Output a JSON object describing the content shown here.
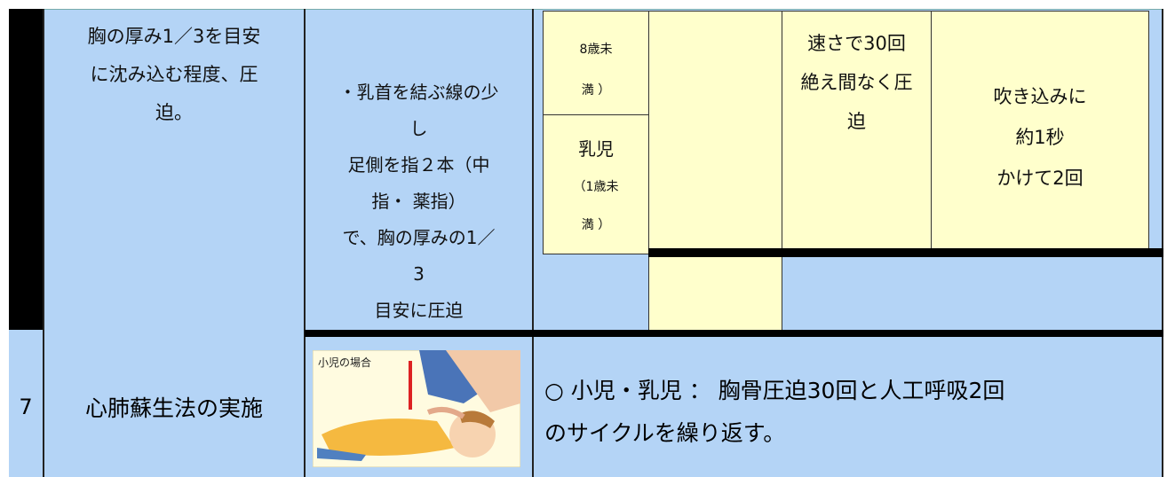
{
  "rows": [
    {
      "depth": [
        "胸の厚み1／3を目安",
        "に沈み込む程度、圧",
        "迫。"
      ],
      "position": [
        "・乳首を結ぶ線の少",
        "し",
        "足側を指２本（中",
        "指・ 薬指）",
        "で、胸の厚みの1／",
        "3",
        "目安に圧迫"
      ],
      "age_child": [
        "8歳未",
        "満 ）"
      ],
      "age_infant": [
        "乳児",
        "（1歳未",
        "満 ）"
      ],
      "compression": [
        "速さで30回",
        "絶え間なく圧",
        "迫"
      ],
      "breath": [
        "吹き込みに",
        "約1秒",
        "かけて2回"
      ]
    },
    {
      "number": "7",
      "title": "心肺蘇生法の実施",
      "image_label": "小児の場合",
      "note": [
        "○ 小児・乳児 ： 胸骨圧迫30回と人工呼吸2回",
        "のサイクルを繰り返す。"
      ]
    }
  ]
}
